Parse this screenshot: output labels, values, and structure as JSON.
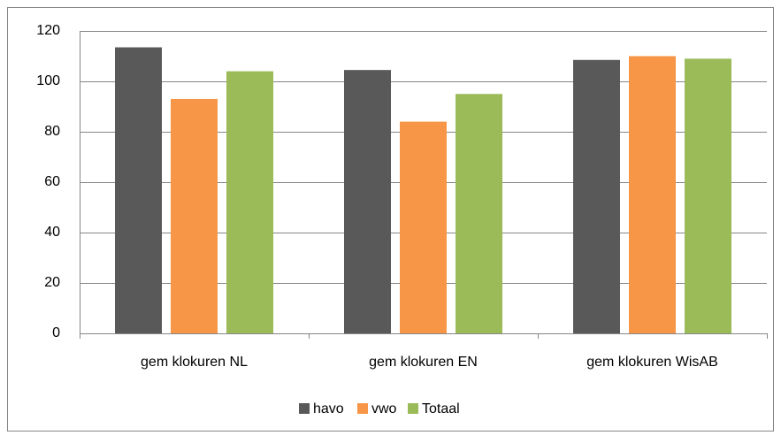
{
  "chart_data": {
    "type": "bar",
    "categories": [
      "gem klokuren NL",
      "gem klokuren EN",
      "gem klokuren WisAB"
    ],
    "series": [
      {
        "name": "havo",
        "color": "#595959",
        "values": [
          113.5,
          104.5,
          108.5
        ]
      },
      {
        "name": "vwo",
        "color": "#f79646",
        "values": [
          93,
          84,
          110
        ]
      },
      {
        "name": "Totaal",
        "color": "#9bbb59",
        "values": [
          104,
          95,
          109
        ]
      }
    ],
    "ylim": [
      0,
      120
    ],
    "yticks": [
      0,
      20,
      40,
      60,
      80,
      100,
      120
    ],
    "grid": true,
    "legend": "bottom"
  }
}
